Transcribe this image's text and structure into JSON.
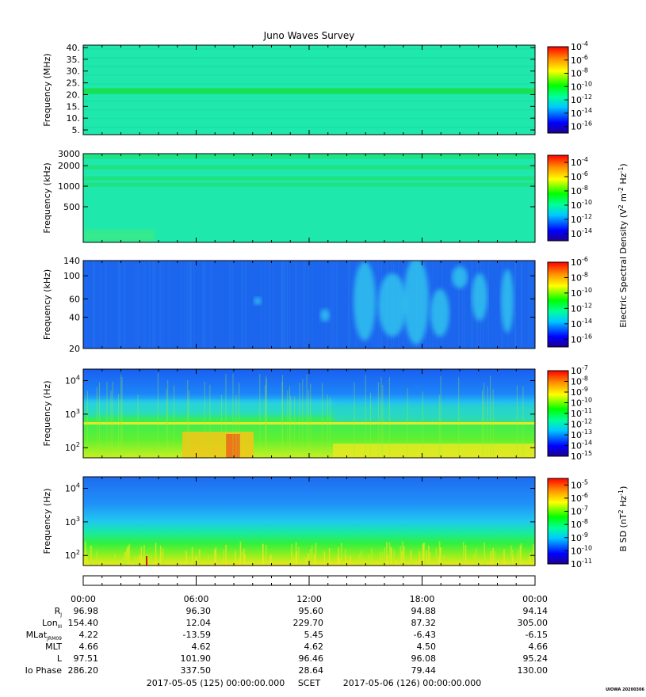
{
  "title": "Juno Waves Survey",
  "credit": "UIOWA 20200306",
  "colors": {
    "bg": "#1ee8a4",
    "band": "#14e25a",
    "frame": "#000000"
  },
  "chart_data": [
    {
      "type": "heatmap",
      "ylabel": "Frequency (MHz)",
      "yscale": "linear",
      "ylim": [
        3,
        41
      ],
      "yticks": [
        "40.",
        "35.",
        "30.",
        "25.",
        "20.",
        "15.",
        "10.",
        "5."
      ],
      "ytick_values": [
        40,
        35,
        30,
        25,
        20,
        15,
        10,
        5
      ],
      "colorbar": {
        "ticks": [
          "-4",
          "-6",
          "-8",
          "-10",
          "-12",
          "-14",
          "-16"
        ],
        "tick_values": [
          -4,
          -6,
          -8,
          -10,
          -12,
          -14,
          -16
        ],
        "range": [
          -17,
          -4
        ]
      }
    },
    {
      "type": "heatmap",
      "ylabel": "Frequency (kHz)",
      "yscale": "log",
      "ylim": [
        150,
        3000
      ],
      "yticks": [
        "3000",
        "2000",
        "1000",
        "500"
      ],
      "ytick_values": [
        3000,
        2000,
        1000,
        500
      ],
      "colorbar": {
        "ticks": [
          "-4",
          "-6",
          "-8",
          "-10",
          "-12",
          "-14"
        ],
        "tick_values": [
          -4,
          -6,
          -8,
          -10,
          -12,
          -14
        ],
        "range": [
          -15,
          -3
        ]
      }
    },
    {
      "type": "heatmap",
      "ylabel": "Frequency (kHz)",
      "yscale": "log",
      "ylim": [
        20,
        140
      ],
      "yticks": [
        "140",
        "100",
        "60",
        "40",
        "20"
      ],
      "ytick_values": [
        140,
        100,
        60,
        40,
        20
      ],
      "colorbar": {
        "ticks": [
          "-6",
          "-8",
          "-10",
          "-12",
          "-14",
          "-16"
        ],
        "tick_values": [
          -6,
          -8,
          -10,
          -12,
          -14,
          -16
        ],
        "range": [
          -17,
          -6
        ]
      }
    },
    {
      "type": "heatmap",
      "ylabel": "Frequency (Hz)",
      "yscale": "log",
      "ylim": [
        50,
        22000
      ],
      "yticks": [
        "4",
        "3",
        "2"
      ],
      "ytick_values": [
        10000,
        1000,
        100
      ],
      "colorbar": {
        "ticks": [
          "-7",
          "-8",
          "-9",
          "-10",
          "-11",
          "-12",
          "-13",
          "-14",
          "-15"
        ],
        "tick_values": [
          -7,
          -8,
          -9,
          -10,
          -11,
          -12,
          -13,
          -14,
          -15
        ],
        "range": [
          -15,
          -7
        ]
      }
    },
    {
      "type": "heatmap",
      "ylabel": "Frequency (Hz)",
      "yscale": "log",
      "ylim": [
        50,
        22000
      ],
      "yticks": [
        "4",
        "3",
        "2"
      ],
      "ytick_values": [
        10000,
        1000,
        100
      ],
      "colorbar": {
        "ticks": [
          "-5",
          "-6",
          "-7",
          "-8",
          "-9",
          "-10",
          "-11"
        ],
        "tick_values": [
          -5,
          -6,
          -7,
          -8,
          -9,
          -10,
          -11
        ],
        "range": [
          -11,
          -4.5
        ]
      }
    }
  ],
  "colorbar_labels": {
    "electric_prefix": "Electric Spectral Density (V",
    "electric_m": " m",
    "electric_hz": " Hz",
    "electric_close": ")",
    "magnetic_prefix": "B SD (nT",
    "magnetic_hz": " Hz",
    "magnetic_close": ")",
    "sup2": "2",
    "supm2": "-2",
    "supm1": "-1",
    "base": "10"
  },
  "time_axis": {
    "labels": [
      "00:00",
      "06:00",
      "12:00",
      "18:00",
      "00:00"
    ],
    "hours": [
      0,
      6,
      12,
      18,
      24
    ]
  },
  "ephemeris": [
    {
      "name": "R",
      "sub": "J",
      "values": [
        "96.98",
        "96.30",
        "95.60",
        "94.88",
        "94.14"
      ]
    },
    {
      "name": "Lon",
      "sub": "III",
      "values": [
        "154.40",
        "12.04",
        "229.70",
        "87.32",
        "305.00"
      ]
    },
    {
      "name": "MLat",
      "sub": "JRM09",
      "values": [
        "4.22",
        "-13.59",
        "5.45",
        "-6.43",
        "-6.15"
      ]
    },
    {
      "name": "MLT",
      "sub": "",
      "values": [
        "4.66",
        "4.62",
        "4.62",
        "4.50",
        "4.66"
      ]
    },
    {
      "name": "L",
      "sub": "",
      "values": [
        "97.51",
        "101.90",
        "96.46",
        "96.08",
        "95.24"
      ]
    },
    {
      "name": "Io Phase",
      "sub": "",
      "values": [
        "286.20",
        "337.50",
        "28.64",
        "79.44",
        "130.00"
      ]
    }
  ],
  "footer": {
    "start": "2017-05-05 (125) 00:00:00.000",
    "scet": "SCET",
    "end": "2017-05-06 (126) 00:00:00.000"
  }
}
